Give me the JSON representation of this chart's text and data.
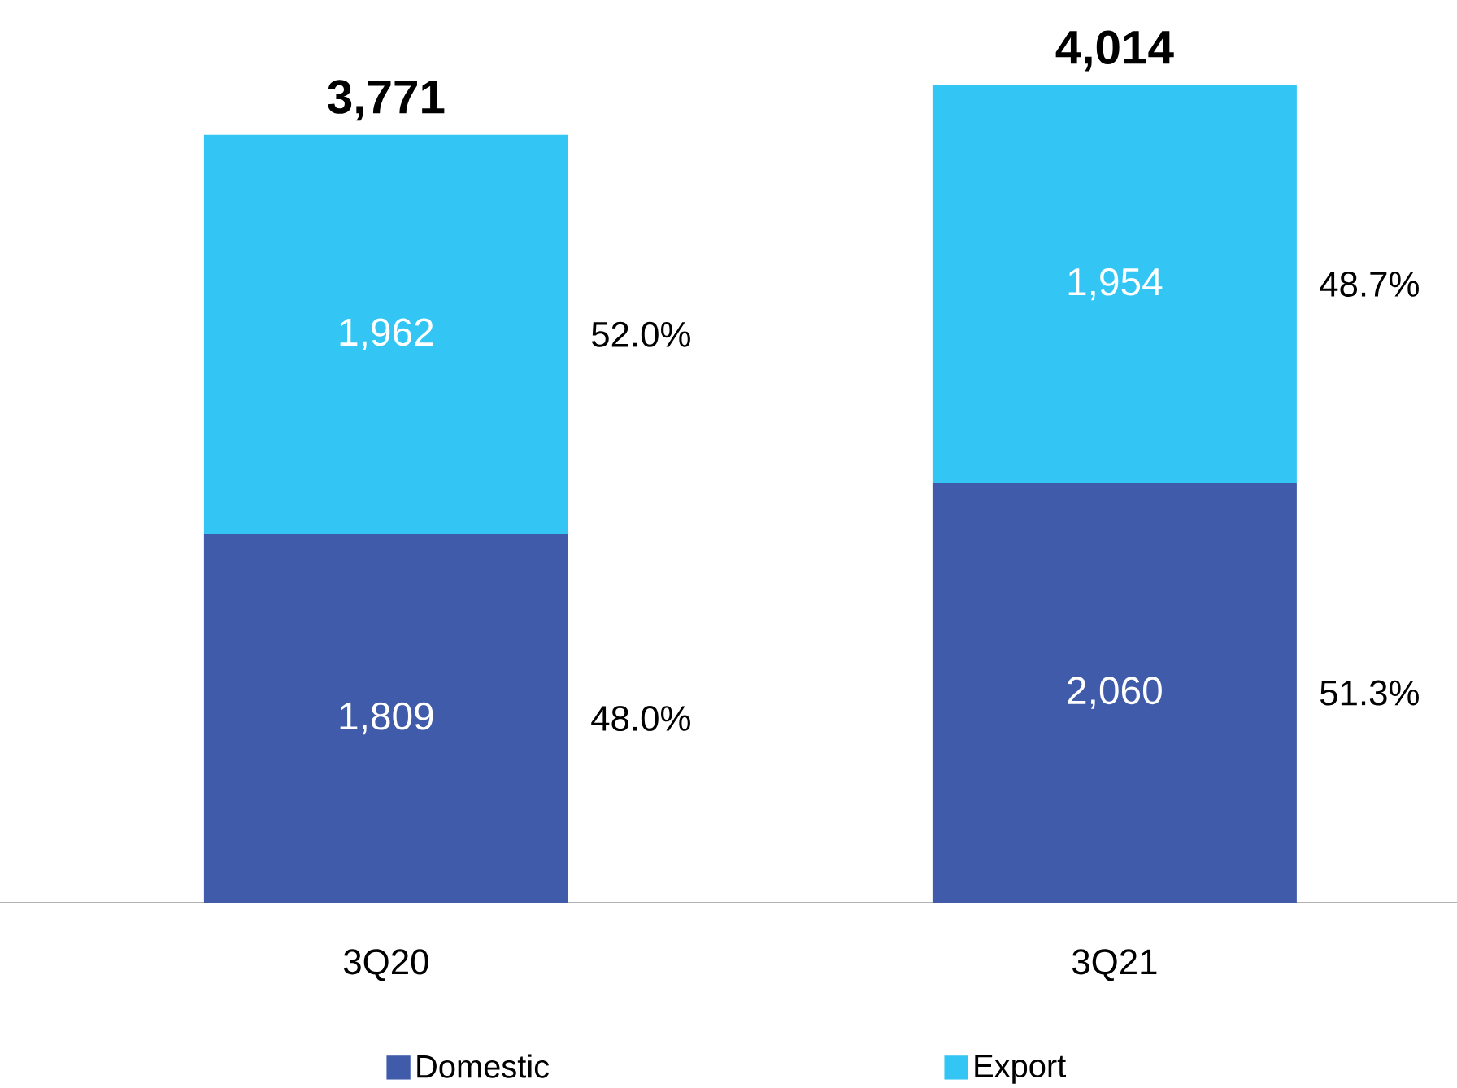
{
  "chart_data": {
    "type": "bar",
    "stacked": true,
    "categories": [
      "3Q20",
      "3Q21"
    ],
    "series": [
      {
        "name": "Domestic",
        "color": "#3f5ba9",
        "values": [
          1809,
          2060
        ],
        "value_labels": [
          "1,809",
          "2,060"
        ]
      },
      {
        "name": "Export",
        "color": "#33c5f3",
        "values": [
          1962,
          1954
        ],
        "value_labels": [
          "1,962",
          "1,954"
        ]
      }
    ],
    "totals": [
      "3,771",
      "4,014"
    ],
    "annotations": [
      "48.0%",
      "52.0%",
      "51.3%",
      "48.7%"
    ],
    "legend": "bottom"
  }
}
